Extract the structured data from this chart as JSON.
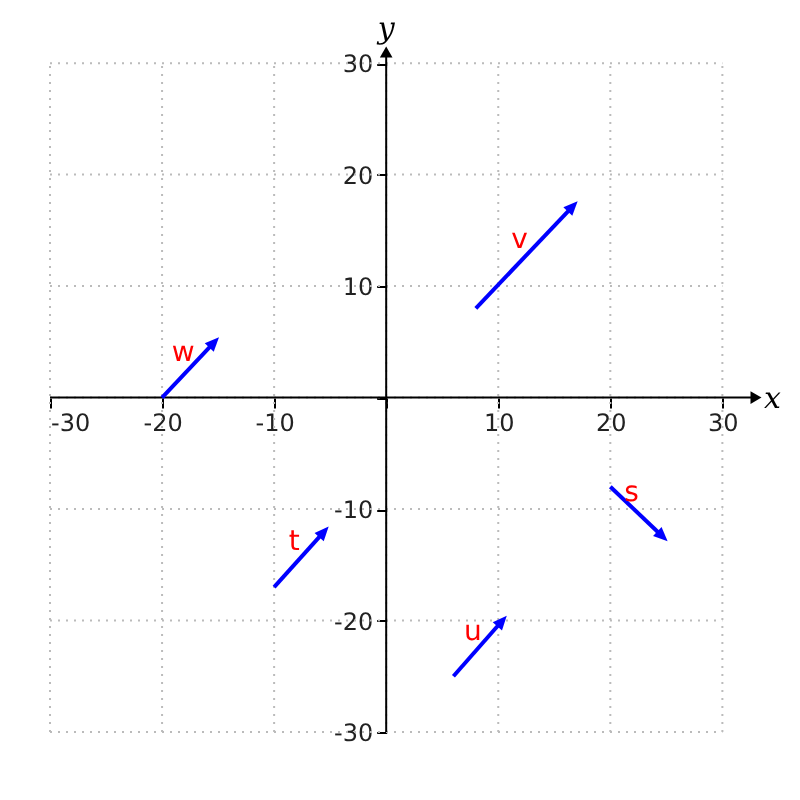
{
  "chart_data": {
    "type": "line",
    "xlabel": "x",
    "ylabel": "y",
    "xlim": [
      -30,
      33
    ],
    "ylim": [
      -30,
      31
    ],
    "xticks": [
      -30,
      -20,
      -10,
      {
        "value": 0,
        "label": null
      },
      10,
      20,
      30
    ],
    "yticks": [
      -30,
      -20,
      -10,
      {
        "value": 0,
        "label": null
      },
      10,
      20,
      30
    ],
    "grid": true,
    "marker": "triangle",
    "series": [
      {
        "name": "w",
        "color": "#0000ff",
        "x": [
          -20,
          -15.5
        ],
        "values": [
          0,
          4.8
        ]
      },
      {
        "name": "v",
        "color": "#0000ff",
        "x": [
          8,
          16.5
        ],
        "values": [
          8,
          17
        ]
      },
      {
        "name": "t",
        "color": "#0000ff",
        "x": [
          -10,
          -5.7
        ],
        "values": [
          -17,
          -12.2
        ]
      },
      {
        "name": "u",
        "color": "#0000ff",
        "x": [
          6,
          10.2
        ],
        "values": [
          -25,
          -20.2
        ]
      },
      {
        "name": "s",
        "color": "#0000ff",
        "x": [
          20,
          24.5
        ],
        "values": [
          -8,
          -12.3
        ]
      }
    ]
  }
}
